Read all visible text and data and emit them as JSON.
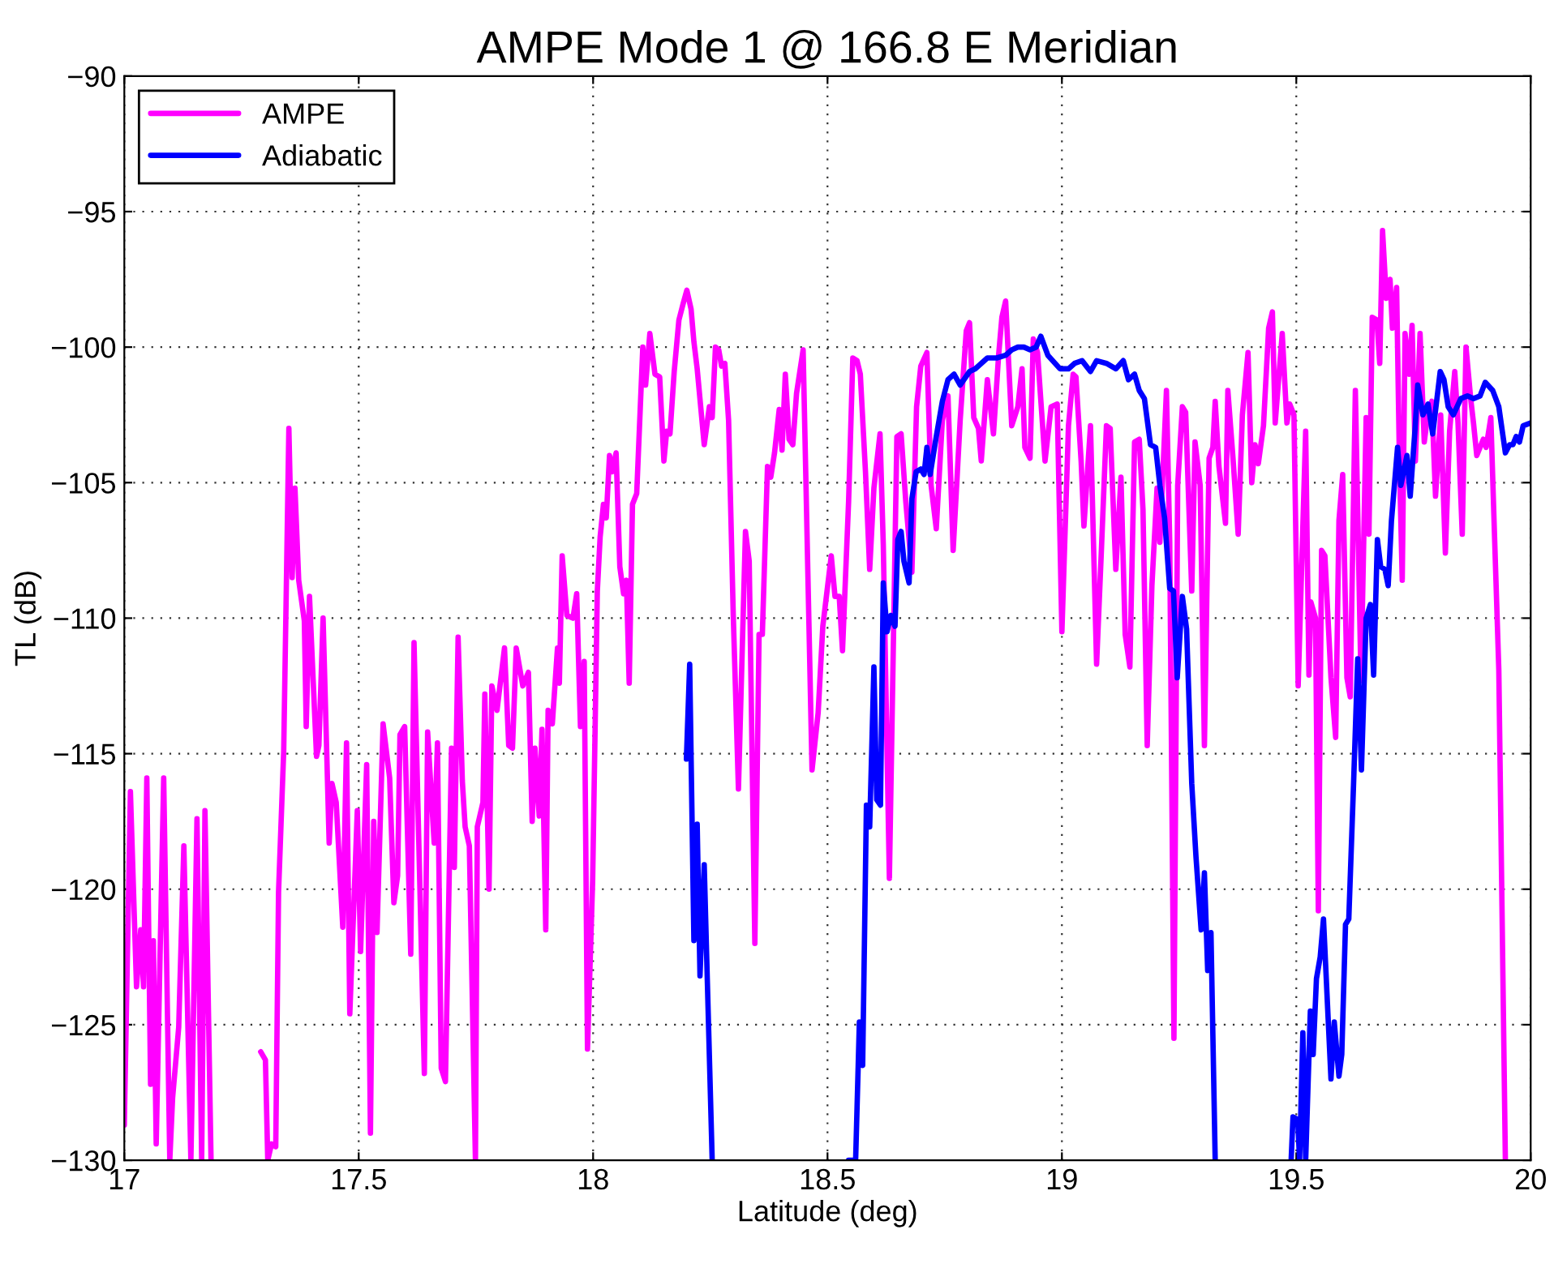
{
  "chart_data": {
    "type": "line",
    "title": "AMPE Mode 1 @ 166.8 E Meridian",
    "xlabel": "Latitude (deg)",
    "ylabel": "TL (dB)",
    "xlim": [
      17,
      20
    ],
    "ylim": [
      -130,
      -90
    ],
    "xticks": [
      17,
      17.5,
      18,
      18.5,
      19,
      19.5,
      20
    ],
    "yticks": [
      -130,
      -125,
      -120,
      -115,
      -110,
      -105,
      -100,
      -95,
      -90
    ],
    "grid": true,
    "legend": "top left",
    "line_style": "solid",
    "marker": "none",
    "series": [
      {
        "name": "AMPE",
        "color": "#ff00ff",
        "x": [
          17.0,
          17.013,
          17.026,
          17.035,
          17.041,
          17.048,
          17.056,
          17.062,
          17.068,
          17.084,
          17.097,
          17.103,
          17.116,
          17.127,
          17.142,
          17.155,
          17.165,
          17.172,
          17.185,
          17.24,
          17.291,
          17.301,
          17.306,
          17.314,
          17.323,
          17.329,
          17.34,
          17.351,
          17.358,
          17.364,
          17.372,
          17.384,
          17.388,
          17.395,
          17.41,
          17.415,
          17.424,
          17.437,
          17.443,
          17.452,
          17.466,
          17.474,
          17.481,
          17.497,
          17.504,
          17.517,
          17.525,
          17.532,
          17.539,
          17.552,
          17.566,
          17.575,
          17.583,
          17.588,
          17.598,
          17.611,
          17.618,
          17.64,
          17.647,
          17.661,
          17.668,
          17.676,
          17.685,
          17.698,
          17.704,
          17.712,
          17.721,
          17.727,
          17.736,
          17.749,
          17.753,
          17.765,
          17.769,
          17.778,
          17.784,
          17.795,
          17.811,
          17.82,
          17.828,
          17.836,
          17.85,
          17.862,
          17.87,
          17.876,
          17.885,
          17.891,
          17.899,
          17.904,
          17.913,
          17.924,
          17.928,
          17.934,
          17.944,
          17.957,
          17.965,
          17.973,
          17.981,
          17.988,
          17.999,
          18.009,
          18.015,
          18.022,
          18.028,
          18.035,
          18.041,
          18.049,
          18.057,
          18.065,
          18.071,
          18.077,
          18.084,
          18.093,
          18.106,
          18.112,
          18.121,
          18.132,
          18.142,
          18.151,
          18.157,
          18.164,
          18.173,
          18.183,
          18.192,
          18.2,
          18.209,
          18.215,
          18.222,
          18.237,
          18.248,
          18.254,
          18.261,
          18.268,
          18.274,
          18.281,
          18.289,
          18.299,
          18.31,
          18.325,
          18.333,
          18.345,
          18.354,
          18.361,
          18.372,
          18.379,
          18.387,
          18.397,
          18.403,
          18.41,
          18.418,
          18.426,
          18.434,
          18.448,
          18.467,
          18.48,
          18.49,
          18.508,
          18.516,
          18.525,
          18.532,
          18.545,
          18.554,
          18.563,
          18.57,
          18.581,
          18.59,
          18.599,
          18.612,
          18.619,
          18.632,
          18.648,
          18.657,
          18.667,
          18.68,
          18.69,
          18.699,
          18.712,
          18.721,
          18.732,
          18.745,
          18.757,
          18.768,
          18.783,
          18.796,
          18.803,
          18.812,
          18.822,
          18.828,
          18.841,
          18.854,
          18.865,
          18.872,
          18.88,
          18.893,
          18.906,
          18.915,
          18.921,
          18.932,
          18.939,
          18.948,
          18.964,
          18.977,
          18.99,
          19.0,
          19.014,
          19.024,
          19.03,
          19.041,
          19.047,
          19.061,
          19.074,
          19.084,
          19.095,
          19.103,
          19.115,
          19.126,
          19.135,
          19.145,
          19.155,
          19.165,
          19.173,
          19.182,
          19.192,
          19.203,
          19.209,
          19.223,
          19.23,
          19.239,
          19.247,
          19.257,
          19.264,
          19.277,
          19.284,
          19.295,
          19.304,
          19.314,
          19.322,
          19.327,
          19.335,
          19.349,
          19.354,
          19.365,
          19.376,
          19.385,
          19.397,
          19.405,
          19.412,
          19.419,
          19.43,
          19.441,
          19.449,
          19.455,
          19.47,
          19.48,
          19.486,
          19.495,
          19.504,
          19.52,
          19.527,
          19.531,
          19.541,
          19.547,
          19.554,
          19.561,
          19.574,
          19.584,
          19.591,
          19.599,
          19.608,
          19.615,
          19.626,
          19.638,
          19.649,
          19.655,
          19.662,
          19.672,
          19.678,
          19.684,
          19.692,
          19.7,
          19.705,
          19.714,
          19.72,
          19.726,
          19.732,
          19.741,
          19.747,
          19.754,
          19.764,
          19.773,
          19.781,
          19.789,
          19.797,
          19.808,
          19.818,
          19.827,
          19.838,
          19.845,
          19.854,
          19.862,
          19.872,
          19.878,
          19.885,
          19.899,
          19.905,
          19.915,
          19.922,
          19.932,
          19.946
        ],
        "values": [
          -128.7,
          -116.4,
          -123.6,
          -121.5,
          -123.6,
          -115.9,
          -127.2,
          -121.9,
          -129.4,
          -115.9,
          -130,
          -127.7,
          -125.1,
          -118.4,
          -130,
          -117.4,
          -130,
          -117.1,
          -130,
          null,
          -126.0,
          -126.3,
          -130,
          -129.4,
          -129.5,
          -120.1,
          -114.9,
          -103.0,
          -108.5,
          -105.2,
          -108.6,
          -110.1,
          -114.0,
          -109.2,
          -115.1,
          -114.7,
          -110.0,
          -118.3,
          -116.1,
          -116.8,
          -121.4,
          -114.6,
          -124.6,
          -117.1,
          -122.3,
          -115.4,
          -129.0,
          -117.5,
          -121.6,
          -113.9,
          -115.9,
          -120.5,
          -119.5,
          -114.3,
          -114.0,
          -122.4,
          -110.9,
          -126.8,
          -114.2,
          -118.3,
          -114.6,
          -126.6,
          -127.1,
          -114.8,
          -119.2,
          -110.7,
          -116.0,
          -117.7,
          -118.4,
          -130,
          -117.7,
          -116.8,
          -112.8,
          -120.0,
          -112.5,
          -113.4,
          -111.1,
          -114.7,
          -114.8,
          -111.1,
          -112.5,
          -112.0,
          -117.5,
          -114.8,
          -117.3,
          -114.1,
          -121.5,
          -113.4,
          -113.9,
          -111.1,
          -112.4,
          -107.7,
          -109.9,
          -110.0,
          -109.1,
          -114.0,
          -111.6,
          -125.9,
          -119.7,
          -109.0,
          -107.0,
          -105.8,
          -106.3,
          -104.0,
          -104.6,
          -103.9,
          -108.1,
          -109.1,
          -108.6,
          -112.4,
          -105.8,
          -105.4,
          -100.0,
          -101.4,
          -99.5,
          -101.0,
          -101.1,
          -104.2,
          -103.1,
          -103.2,
          -100.9,
          -99.0,
          -98.4,
          -97.9,
          -98.6,
          -99.8,
          -100.8,
          -103.6,
          -102.2,
          -102.6,
          -100.0,
          -100.1,
          -100.7,
          -100.6,
          -102.7,
          -109.9,
          -116.3,
          -106.8,
          -107.9,
          -122.0,
          -110.6,
          -110.6,
          -104.4,
          -104.8,
          -103.9,
          -102.3,
          -103.8,
          -101.0,
          -103.4,
          -103.6,
          -101.7,
          -100.1,
          -115.6,
          -113.5,
          -110.3,
          -107.7,
          -109.2,
          -109.2,
          -111.2,
          -105.7,
          -100.4,
          -100.5,
          -101.0,
          -104.6,
          -108.2,
          -105.2,
          -103.2,
          -107.3,
          -119.6,
          -103.3,
          -103.2,
          -105.7,
          -108.3,
          -102.2,
          -100.7,
          -100.2,
          -105.1,
          -106.7,
          -102.7,
          -101.8,
          -107.5,
          -102.7,
          -99.4,
          -99.1,
          -102.6,
          -103.0,
          -104.2,
          -101.2,
          -103.2,
          -100.3,
          -98.9,
          -98.3,
          -102.9,
          -102.2,
          -100.8,
          -103.7,
          -104.1,
          -99.7,
          -100.2,
          -104.2,
          -102.2,
          -102.1,
          -110.5,
          -102.9,
          -101.0,
          -101.1,
          -104.2,
          -106.6,
          -102.9,
          -111.7,
          -107.6,
          -102.9,
          -103.0,
          -108.2,
          -104.8,
          -110.6,
          -111.8,
          -103.5,
          -103.4,
          -106.0,
          -114.7,
          -108.8,
          -105.2,
          -107.2,
          -101.6,
          -107.2,
          -125.5,
          -105.1,
          -102.2,
          -102.4,
          -109.0,
          -103.5,
          -105.1,
          -114.7,
          -104.1,
          -103.7,
          -102.0,
          -104.4,
          -106.5,
          -101.6,
          -104.1,
          -106.9,
          -102.5,
          -100.2,
          -105.0,
          -103.6,
          -104.3,
          -102.9,
          -99.3,
          -98.7,
          -102.8,
          -99.5,
          -102.8,
          -102.1,
          -102.5,
          -112.5,
          -103.1,
          -112.1,
          -109.4,
          -110.0,
          -120.8,
          -107.5,
          -107.7,
          -112.2,
          -114.4,
          -106.4,
          -104.7,
          -112.2,
          -112.9,
          -101.6,
          -112.3,
          -102.6,
          -106.9,
          -98.9,
          -99.0,
          -100.6,
          -95.7,
          -98.2,
          -97.5,
          -99.3,
          -97.8,
          -104.2,
          -108.6,
          -99.5,
          -101.0,
          -99.2,
          -104.2,
          -99.5,
          -103.5,
          -102.4,
          -102.0,
          -105.5,
          -102.5,
          -107.6,
          -103.1,
          -100.9,
          -102.8,
          -106.9,
          -100.0,
          -101.9,
          -102.8,
          -104.0,
          -103.4,
          -103.7,
          -102.6,
          -106.5,
          -111.9,
          -130
        ]
      },
      {
        "name": "Adiabatic",
        "color": "#0000ff",
        "x": [
          18.199,
          18.206,
          18.215,
          18.222,
          18.228,
          18.237,
          18.254,
          18.4,
          18.545,
          18.56,
          18.568,
          18.575,
          18.583,
          18.59,
          18.599,
          18.605,
          18.613,
          18.619,
          18.627,
          18.635,
          18.644,
          18.65,
          18.657,
          18.663,
          18.674,
          18.68,
          18.689,
          18.699,
          18.706,
          18.712,
          18.719,
          18.732,
          18.745,
          18.757,
          18.77,
          18.783,
          18.803,
          18.815,
          18.828,
          18.841,
          18.861,
          18.88,
          18.893,
          18.906,
          18.919,
          18.932,
          18.945,
          18.955,
          18.97,
          18.996,
          19.014,
          19.027,
          19.043,
          19.061,
          19.074,
          19.095,
          19.115,
          19.131,
          19.142,
          19.155,
          19.165,
          19.176,
          19.189,
          19.2,
          19.209,
          19.219,
          19.23,
          19.238,
          19.246,
          19.257,
          19.266,
          19.277,
          19.286,
          19.297,
          19.304,
          19.311,
          19.318,
          19.327,
          19.4,
          19.489,
          19.493,
          19.503,
          19.507,
          19.514,
          19.52,
          19.53,
          19.536,
          19.543,
          19.551,
          19.558,
          19.568,
          19.574,
          19.581,
          19.591,
          19.597,
          19.605,
          19.612,
          19.622,
          19.631,
          19.639,
          19.649,
          19.658,
          19.665,
          19.673,
          19.68,
          19.689,
          19.696,
          19.703,
          19.716,
          19.723,
          19.736,
          19.743,
          19.753,
          19.759,
          19.77,
          19.781,
          19.791,
          19.807,
          19.815,
          19.824,
          19.835,
          19.851,
          19.865,
          19.878,
          19.892,
          19.903,
          19.919,
          19.932,
          19.946,
          19.955,
          19.962,
          19.969,
          19.976,
          19.984,
          20.0
        ],
        "values": [
          -115.2,
          -111.7,
          -121.9,
          -117.6,
          -123.2,
          -119.1,
          -130,
          null,
          -130,
          -130,
          -124.9,
          -126.5,
          -116.9,
          -117.7,
          -111.8,
          -116.7,
          -116.9,
          -108.7,
          -110.5,
          -109.9,
          -110.3,
          -107.1,
          -106.8,
          -107.9,
          -108.7,
          -105.6,
          -104.6,
          -104.5,
          -104.7,
          -103.7,
          -104.7,
          -103.3,
          -102.0,
          -101.2,
          -101.0,
          -101.4,
          -100.9,
          -100.8,
          -100.6,
          -100.4,
          -100.4,
          -100.3,
          -100.1,
          -100.0,
          -100.0,
          -100.1,
          -100.0,
          -99.6,
          -100.3,
          -100.8,
          -100.8,
          -100.6,
          -100.5,
          -100.9,
          -100.5,
          -100.6,
          -100.8,
          -100.5,
          -101.2,
          -101.0,
          -101.6,
          -101.9,
          -103.6,
          -103.7,
          -105.1,
          -106.3,
          -108.9,
          -109.0,
          -112.2,
          -109.2,
          -110.4,
          -116.1,
          -118.8,
          -121.5,
          -119.4,
          -123.0,
          -121.6,
          -130,
          null,
          -130,
          -128.4,
          -128.5,
          -130,
          -125.3,
          -130,
          -124.5,
          -126.1,
          -123.3,
          -122.5,
          -121.1,
          -124.8,
          -127.0,
          -124.9,
          -126.9,
          -126.1,
          -121.3,
          -121.1,
          -116.2,
          -111.5,
          -115.6,
          -110.0,
          -109.5,
          -112.1,
          -107.1,
          -108.1,
          -108.2,
          -108.8,
          -106.4,
          -103.7,
          -105.1,
          -104.0,
          -105.5,
          -103.1,
          -101.4,
          -102.5,
          -102.1,
          -103.2,
          -100.9,
          -101.2,
          -102.2,
          -102.5,
          -101.9,
          -101.8,
          -101.9,
          -101.8,
          -101.3,
          -101.6,
          -102.2,
          -103.9,
          -103.6,
          -103.6,
          -103.3,
          -103.5,
          -102.9,
          -102.8
        ]
      }
    ]
  }
}
